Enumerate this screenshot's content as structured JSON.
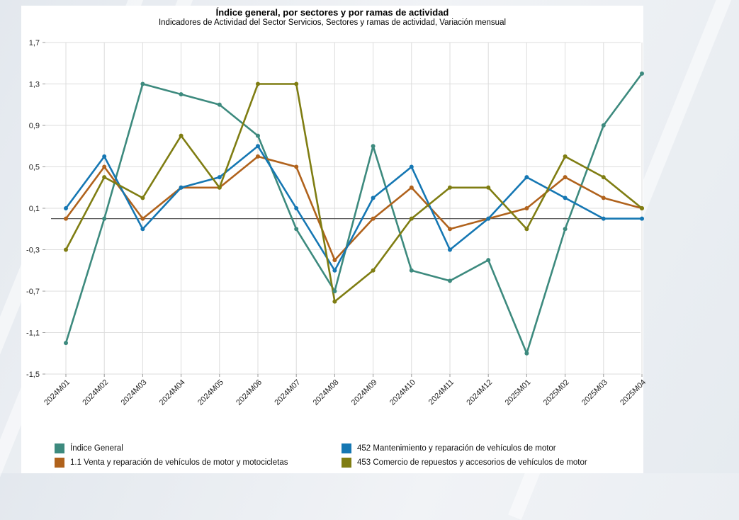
{
  "chart_data": {
    "type": "line",
    "title": "Índice general, por sectores y por ramas de actividad",
    "subtitle": "Indicadores de Actividad del Sector Servicios, Sectores y ramas de actividad, Variación mensual",
    "xlabel": "",
    "ylabel": "",
    "ylim": [
      -1.5,
      1.7
    ],
    "yticks": [
      1.7,
      1.3,
      0.9,
      0.5,
      0.1,
      -0.3,
      -0.7,
      -1.1,
      -1.5
    ],
    "ytick_labels": [
      "1,7",
      "1,3",
      "0,9",
      "0,5",
      "0,1",
      "-0,3",
      "-0,7",
      "-1,1",
      "-1,5"
    ],
    "grid": true,
    "legend_position": "bottom",
    "categories": [
      "2024M01",
      "2024M02",
      "2024M03",
      "2024M04",
      "2024M05",
      "2024M06",
      "2024M07",
      "2024M08",
      "2024M09",
      "2024M10",
      "2024M11",
      "2024M12",
      "2025M01",
      "2025M02",
      "2025M03",
      "2025M04"
    ],
    "series": [
      {
        "name": "Índice General",
        "color": "#3d8a7e",
        "values": [
          -1.2,
          0.0,
          1.3,
          1.2,
          1.1,
          0.8,
          -0.1,
          -0.7,
          0.7,
          -0.5,
          -0.6,
          -0.4,
          -1.3,
          -0.1,
          0.9,
          1.4
        ]
      },
      {
        "name": "1.1 Venta y reparación de vehículos de motor y motocicletas",
        "color": "#b0621c",
        "values": [
          0.0,
          0.5,
          0.0,
          0.3,
          0.3,
          0.6,
          0.5,
          -0.4,
          0.0,
          0.3,
          -0.1,
          0.0,
          0.1,
          0.4,
          0.2,
          0.1
        ]
      },
      {
        "name": "452 Mantenimiento y reparación de vehículos de motor",
        "color": "#1577b3",
        "values": [
          0.1,
          0.6,
          -0.1,
          0.3,
          0.4,
          0.7,
          0.1,
          -0.5,
          0.2,
          0.5,
          -0.3,
          0.0,
          0.4,
          0.2,
          0.0,
          0.0
        ]
      },
      {
        "name": "453 Comercio de repuestos y accesorios de vehículos de motor",
        "color": "#7f7d12",
        "values": [
          -0.3,
          0.4,
          0.2,
          0.8,
          0.3,
          1.3,
          1.3,
          -0.8,
          -0.5,
          0.0,
          0.3,
          0.3,
          -0.1,
          0.6,
          0.4,
          0.1
        ]
      }
    ]
  }
}
